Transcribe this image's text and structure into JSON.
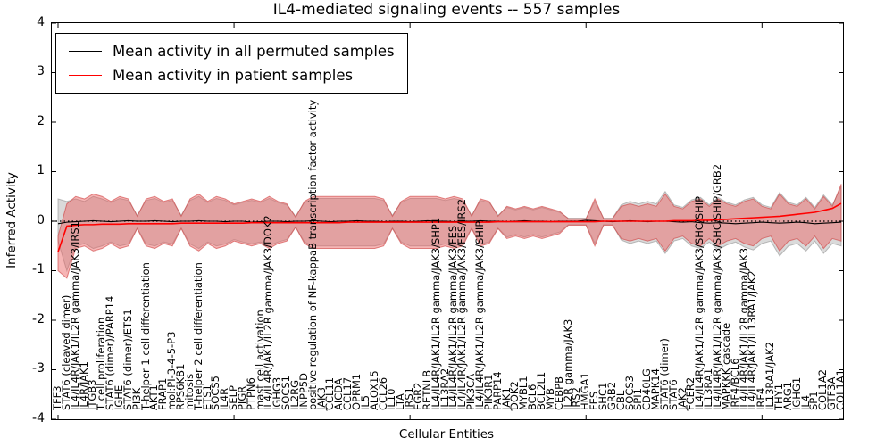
{
  "title": "IL4-mediated signaling events -- 557 samples",
  "axes": {
    "ylabel": "Inferred Activity",
    "xlabel": "Cellular Entities",
    "yticks": [
      4,
      3,
      2,
      1,
      0,
      -1,
      -2,
      -3,
      -4
    ]
  },
  "legend": {
    "entries": [
      {
        "label": "Mean activity in all permuted samples",
        "color": "#000000"
      },
      {
        "label": "Mean activity in patient samples",
        "color": "#ff0000"
      }
    ]
  },
  "chart_data": {
    "type": "line",
    "title": "IL4-mediated signaling events -- 557 samples",
    "xlabel": "Cellular Entities",
    "ylabel": "Inferred Activity",
    "ylim": [
      -4,
      4
    ],
    "grid": false,
    "legend_position": "upper left",
    "xtick_indices": [
      0,
      20,
      40,
      60,
      80
    ],
    "categories": [
      "TFF3",
      "STAT6 (cleaved dimer)",
      "IL4/IL4R/JAK1/IL2R gamma/JAK3/IRS1",
      "IL4R/JAK1",
      "ITGB3",
      "T cell proliferation",
      "STAT6 (dimer)/PARP14",
      "IGHE",
      "STAT6 (dimer)/ETS1",
      "PI3K",
      "T-helper 1 cell differentiation",
      "AKT1",
      "FRAP1",
      "mol:PI-3-4-5-P3",
      "RPS6KB1",
      "mitosis",
      "T-helper 2 cell differentiation",
      "ETS1",
      "SOCS5",
      "IL4R",
      "SELP",
      "PIGR",
      "PTPN6",
      "mast cell activation",
      "IL4/IL4R/JAK1/IL2R gamma/JAK3/DOK2",
      "IGHG3",
      "SOCS1",
      "IL2RG",
      "INPP5D",
      "positive regulation of NF-kappaB transcription factor activity",
      "JAK3",
      "CCL11",
      "AICDA",
      "CCL17",
      "OPRM1",
      "IL5",
      "ALOX15",
      "CCL26",
      "IL10",
      "LTA",
      "IRS1",
      "EGR2",
      "RETNLB",
      "IL4/IL4R/JAK1/IL2R gamma/JAK3/SHP1",
      "IL13RA2",
      "IL4/IL4R/JAK1/IL2R gamma/JAK3/FES",
      "IL4/IL4R/JAK1/IL2R gamma/JAK3/FES/IRS2",
      "PIK3CA",
      "IL4/IL4R/JAK1/IL2R gamma/JAK3/SHIP",
      "PIK3R1",
      "PARP14",
      "JAK1",
      "DOK2",
      "MYBL1",
      "BCL6",
      "BCL2L1",
      "MYB",
      "CEBPB",
      "IL2R gamma/JAK3",
      "IRS2",
      "HMGA1",
      "FES",
      "SHC1",
      "GRB2",
      "CBL",
      "SOCS3",
      "SPI1",
      "CD40LG",
      "MAPK14",
      "STAT6 (dimer)",
      "STAT6",
      "JAK2",
      "FCER2",
      "IL4/IL4R/JAK1/IL2R gamma/JAK3/SHC/SHIP",
      "IL13RA1",
      "IL4/IL4R/JAK1/IL2R gamma/JAK3/SHC/SHIP/GRB2",
      "MAPKKK cascade",
      "IRF4/BCL6",
      "IL4/IL4R/JAK1/IL2R gamma/JAK3",
      "IL4/IL4R/JAK1/IL13RA1/JAK2",
      "IRF4",
      "IL13RA1/JAK2",
      "THY1",
      "ARG1",
      "IGHG1",
      "IL4",
      "SP1",
      "COL1A2",
      "GTF3A",
      "COL1A1"
    ],
    "series": [
      {
        "name": "Mean activity in all permuted samples",
        "color": "#000000",
        "values": [
          -0.05,
          -0.02,
          -0.01,
          0.0,
          0.01,
          0.0,
          -0.01,
          0.0,
          0.01,
          0.0,
          0.0,
          0.01,
          0.0,
          -0.01,
          0.0,
          0.0,
          0.01,
          0.0,
          0.0,
          -0.01,
          0.0,
          0.0,
          -0.02,
          -0.01,
          0.0,
          0.0,
          -0.01,
          0.0,
          0.0,
          0.01,
          0.0,
          -0.01,
          0.0,
          0.0,
          0.01,
          0.0,
          0.0,
          -0.01,
          0.0,
          0.0,
          -0.01,
          0.0,
          0.01,
          0.0,
          0.0,
          -0.01,
          0.0,
          0.0,
          0.01,
          0.0,
          0.0,
          -0.01,
          0.0,
          0.01,
          0.0,
          0.0,
          -0.01,
          0.0,
          0.0,
          0.0,
          0.02,
          0.01,
          0.0,
          -0.01,
          0.0,
          0.01,
          0.0,
          -0.01,
          0.0,
          0.0,
          -0.01,
          -0.02,
          -0.01,
          -0.03,
          -0.04,
          -0.03,
          -0.04,
          -0.05,
          -0.04,
          -0.03,
          -0.02,
          -0.03,
          -0.04,
          -0.03,
          -0.02,
          -0.03,
          -0.05,
          -0.04,
          -0.03,
          -0.02
        ]
      },
      {
        "name": "Mean activity in patient samples",
        "color": "#ff0000",
        "values": [
          -0.62,
          -0.1,
          -0.08,
          -0.07,
          -0.07,
          -0.06,
          -0.06,
          -0.06,
          -0.05,
          -0.05,
          -0.05,
          -0.05,
          -0.05,
          -0.05,
          -0.04,
          -0.04,
          -0.04,
          -0.04,
          -0.04,
          -0.04,
          -0.04,
          -0.04,
          -0.03,
          -0.03,
          -0.03,
          -0.03,
          -0.03,
          -0.03,
          -0.03,
          -0.03,
          -0.03,
          -0.03,
          -0.03,
          -0.02,
          -0.02,
          -0.02,
          -0.02,
          -0.02,
          -0.02,
          -0.02,
          -0.02,
          -0.02,
          -0.02,
          -0.02,
          -0.02,
          -0.02,
          -0.02,
          -0.02,
          -0.02,
          -0.02,
          -0.01,
          -0.01,
          -0.01,
          -0.01,
          -0.01,
          -0.01,
          -0.01,
          -0.01,
          -0.01,
          -0.01,
          -0.01,
          -0.01,
          0.0,
          0.0,
          0.0,
          0.0,
          0.0,
          0.0,
          0.0,
          0.0,
          0.01,
          0.01,
          0.01,
          0.02,
          0.02,
          0.03,
          0.04,
          0.05,
          0.06,
          0.07,
          0.08,
          0.09,
          0.1,
          0.12,
          0.14,
          0.16,
          0.18,
          0.22,
          0.26,
          0.36
        ]
      }
    ],
    "bands": [
      {
        "name": "permuted samples +/- std",
        "fill": "rgba(150,150,150,0.35)",
        "edge": "rgba(130,130,130,0.5)",
        "upper": [
          0.45,
          0.4,
          0.45,
          0.4,
          0.5,
          0.45,
          0.38,
          0.46,
          0.42,
          0.12,
          0.42,
          0.46,
          0.38,
          0.42,
          0.12,
          0.42,
          0.5,
          0.38,
          0.46,
          0.42,
          0.33,
          0.38,
          0.42,
          0.38,
          0.46,
          0.38,
          0.33,
          0.1,
          0.38,
          0.46,
          0.46,
          0.46,
          0.46,
          0.46,
          0.46,
          0.46,
          0.46,
          0.42,
          0.12,
          0.38,
          0.46,
          0.46,
          0.46,
          0.46,
          0.42,
          0.46,
          0.42,
          0.12,
          0.42,
          0.38,
          0.12,
          0.28,
          0.23,
          0.28,
          0.23,
          0.28,
          0.23,
          0.18,
          0.06,
          0.06,
          0.06,
          0.4,
          0.06,
          0.06,
          0.33,
          0.4,
          0.35,
          0.4,
          0.35,
          0.6,
          0.33,
          0.28,
          0.43,
          0.48,
          0.33,
          0.48,
          0.38,
          0.33,
          0.43,
          0.48,
          0.33,
          0.28,
          0.58,
          0.38,
          0.33,
          0.48,
          0.28,
          0.53,
          0.33,
          0.7
        ],
        "lower": [
          -0.4,
          -1.0,
          -0.5,
          -0.45,
          -0.55,
          -0.5,
          -0.42,
          -0.5,
          -0.46,
          -0.14,
          -0.46,
          -0.5,
          -0.42,
          -0.46,
          -0.14,
          -0.46,
          -0.55,
          -0.42,
          -0.5,
          -0.46,
          -0.37,
          -0.42,
          -0.46,
          -0.42,
          -0.5,
          -0.42,
          -0.37,
          -0.12,
          -0.42,
          -0.5,
          -0.5,
          -0.5,
          -0.5,
          -0.5,
          -0.5,
          -0.5,
          -0.5,
          -0.46,
          -0.14,
          -0.42,
          -0.5,
          -0.5,
          -0.5,
          -0.5,
          -0.46,
          -0.5,
          -0.46,
          -0.14,
          -0.46,
          -0.42,
          -0.14,
          -0.32,
          -0.27,
          -0.32,
          -0.27,
          -0.32,
          -0.27,
          -0.22,
          -0.07,
          -0.07,
          -0.07,
          -0.45,
          -0.07,
          -0.07,
          -0.38,
          -0.45,
          -0.4,
          -0.45,
          -0.4,
          -0.65,
          -0.4,
          -0.35,
          -0.5,
          -0.55,
          -0.42,
          -0.58,
          -0.48,
          -0.42,
          -0.52,
          -0.58,
          -0.45,
          -0.4,
          -0.7,
          -0.5,
          -0.45,
          -0.6,
          -0.4,
          -0.65,
          -0.45,
          -0.5
        ]
      },
      {
        "name": "patient samples +/- std",
        "fill": "rgba(235,90,90,0.45)",
        "edge": "rgba(205,60,60,0.6)",
        "upper": [
          -0.3,
          0.35,
          0.5,
          0.45,
          0.55,
          0.5,
          0.4,
          0.5,
          0.45,
          0.1,
          0.45,
          0.5,
          0.4,
          0.45,
          0.1,
          0.45,
          0.55,
          0.4,
          0.5,
          0.45,
          0.35,
          0.4,
          0.45,
          0.4,
          0.5,
          0.4,
          0.35,
          0.08,
          0.4,
          0.5,
          0.5,
          0.5,
          0.5,
          0.5,
          0.5,
          0.5,
          0.5,
          0.45,
          0.1,
          0.4,
          0.5,
          0.5,
          0.5,
          0.5,
          0.45,
          0.5,
          0.45,
          0.1,
          0.45,
          0.4,
          0.1,
          0.3,
          0.25,
          0.3,
          0.25,
          0.3,
          0.25,
          0.2,
          0.05,
          0.05,
          0.05,
          0.45,
          0.05,
          0.05,
          0.3,
          0.35,
          0.3,
          0.35,
          0.3,
          0.55,
          0.3,
          0.25,
          0.4,
          0.45,
          0.3,
          0.45,
          0.35,
          0.3,
          0.4,
          0.45,
          0.3,
          0.25,
          0.55,
          0.35,
          0.3,
          0.45,
          0.25,
          0.5,
          0.3,
          0.75
        ],
        "lower": [
          -1.0,
          -1.15,
          -0.55,
          -0.5,
          -0.6,
          -0.55,
          -0.45,
          -0.55,
          -0.5,
          -0.15,
          -0.5,
          -0.55,
          -0.45,
          -0.5,
          -0.15,
          -0.5,
          -0.6,
          -0.45,
          -0.55,
          -0.5,
          -0.4,
          -0.45,
          -0.5,
          -0.45,
          -0.55,
          -0.45,
          -0.4,
          -0.12,
          -0.45,
          -0.55,
          -0.55,
          -0.55,
          -0.55,
          -0.55,
          -0.55,
          -0.55,
          -0.55,
          -0.5,
          -0.15,
          -0.45,
          -0.55,
          -0.55,
          -0.55,
          -0.55,
          -0.5,
          -0.55,
          -0.5,
          -0.15,
          -0.5,
          -0.45,
          -0.15,
          -0.35,
          -0.3,
          -0.35,
          -0.3,
          -0.35,
          -0.3,
          -0.25,
          -0.08,
          -0.08,
          -0.08,
          -0.5,
          -0.08,
          -0.08,
          -0.35,
          -0.4,
          -0.35,
          -0.4,
          -0.35,
          -0.6,
          -0.35,
          -0.3,
          -0.45,
          -0.5,
          -0.35,
          -0.5,
          -0.4,
          -0.35,
          -0.45,
          -0.5,
          -0.35,
          -0.3,
          -0.6,
          -0.4,
          -0.35,
          -0.5,
          -0.3,
          -0.55,
          -0.35,
          -0.4
        ]
      }
    ],
    "reference_line": {
      "y": 0,
      "style": "dotted",
      "color": "#000000"
    }
  }
}
